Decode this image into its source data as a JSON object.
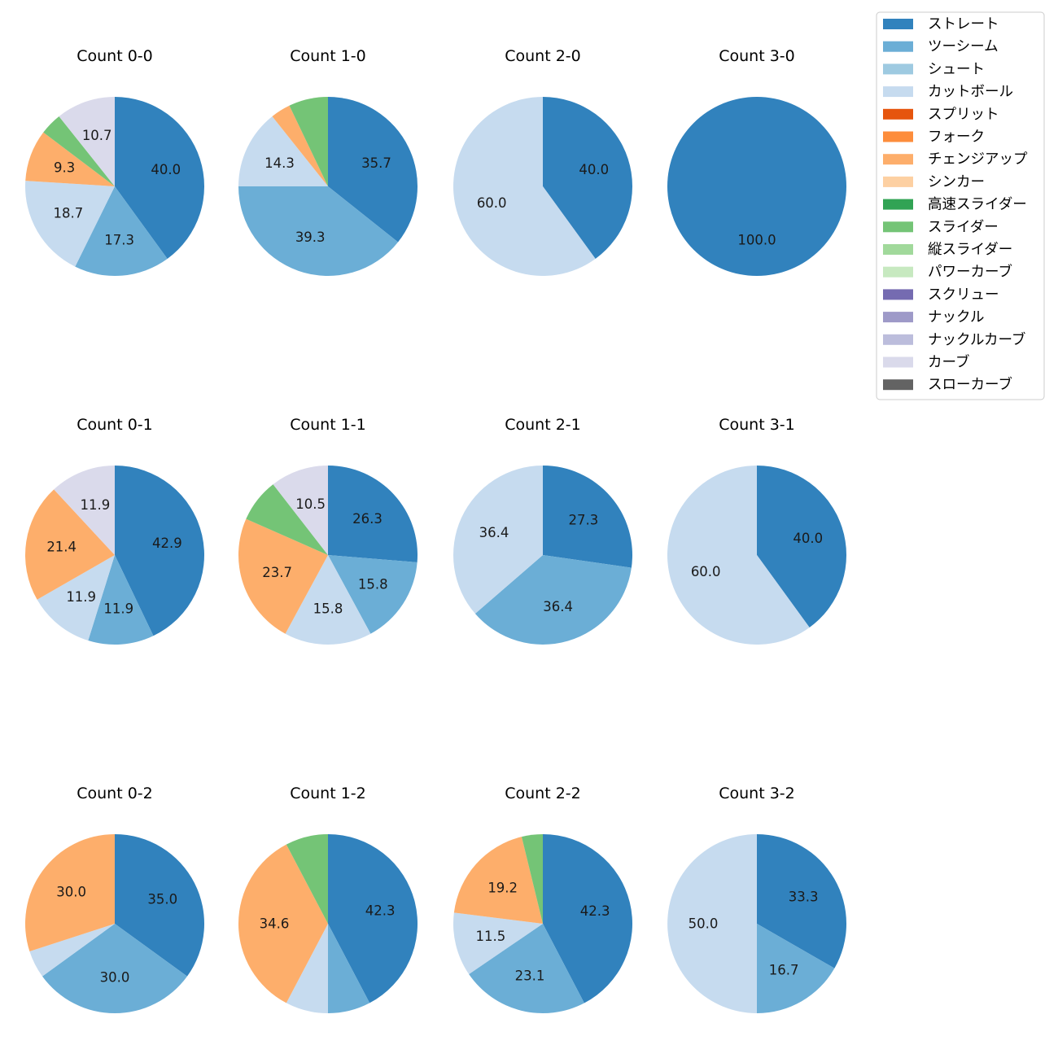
{
  "colors": {
    "ストレート": "#3182bd",
    "ツーシーム": "#6baed6",
    "シュート": "#9ecae1",
    "カットボール": "#c6dbef",
    "スプリット": "#e6550d",
    "フォーク": "#fd8d3c",
    "チェンジアップ": "#fdae6b",
    "シンカー": "#fdd0a2",
    "高速スライダー": "#31a354",
    "スライダー": "#74c476",
    "縦スライダー": "#a1d99b",
    "パワーカーブ": "#c7e9c0",
    "スクリュー": "#756bb1",
    "ナックル": "#9e9ac8",
    "ナックルカーブ": "#bcbddc",
    "カーブ": "#dadaeb",
    "スローカーブ": "#636363"
  },
  "legend": {
    "position": "top-right",
    "entries": [
      "ストレート",
      "ツーシーム",
      "シュート",
      "カットボール",
      "スプリット",
      "フォーク",
      "チェンジアップ",
      "シンカー",
      "高速スライダー",
      "スライダー",
      "縦スライダー",
      "パワーカーブ",
      "スクリュー",
      "ナックル",
      "ナックルカーブ",
      "カーブ",
      "スローカーブ"
    ]
  },
  "chart_data": [
    {
      "type": "pie",
      "title": "Count 0-0",
      "slices": [
        {
          "label": "ストレート",
          "value": 40.0
        },
        {
          "label": "ツーシーム",
          "value": 17.3
        },
        {
          "label": "カットボール",
          "value": 18.7
        },
        {
          "label": "チェンジアップ",
          "value": 9.3
        },
        {
          "label": "スライダー",
          "value": 4.0
        },
        {
          "label": "カーブ",
          "value": 10.7
        }
      ]
    },
    {
      "type": "pie",
      "title": "Count 1-0",
      "slices": [
        {
          "label": "ストレート",
          "value": 35.7
        },
        {
          "label": "ツーシーム",
          "value": 39.3
        },
        {
          "label": "カットボール",
          "value": 14.3
        },
        {
          "label": "チェンジアップ",
          "value": 3.6
        },
        {
          "label": "スライダー",
          "value": 7.1
        }
      ]
    },
    {
      "type": "pie",
      "title": "Count 2-0",
      "slices": [
        {
          "label": "ストレート",
          "value": 40.0
        },
        {
          "label": "カットボール",
          "value": 60.0
        }
      ]
    },
    {
      "type": "pie",
      "title": "Count 3-0",
      "slices": [
        {
          "label": "ストレート",
          "value": 100.0
        }
      ]
    },
    {
      "type": "pie",
      "title": "Count 0-1",
      "slices": [
        {
          "label": "ストレート",
          "value": 42.9
        },
        {
          "label": "ツーシーム",
          "value": 11.9
        },
        {
          "label": "カットボール",
          "value": 11.9
        },
        {
          "label": "チェンジアップ",
          "value": 21.4
        },
        {
          "label": "カーブ",
          "value": 11.9
        }
      ]
    },
    {
      "type": "pie",
      "title": "Count 1-1",
      "slices": [
        {
          "label": "ストレート",
          "value": 26.3
        },
        {
          "label": "ツーシーム",
          "value": 15.8
        },
        {
          "label": "カットボール",
          "value": 15.8
        },
        {
          "label": "チェンジアップ",
          "value": 23.7
        },
        {
          "label": "スライダー",
          "value": 7.9
        },
        {
          "label": "カーブ",
          "value": 10.5
        }
      ]
    },
    {
      "type": "pie",
      "title": "Count 2-1",
      "slices": [
        {
          "label": "ストレート",
          "value": 27.3
        },
        {
          "label": "ツーシーム",
          "value": 36.4
        },
        {
          "label": "カットボール",
          "value": 36.4
        }
      ]
    },
    {
      "type": "pie",
      "title": "Count 3-1",
      "slices": [
        {
          "label": "ストレート",
          "value": 40.0
        },
        {
          "label": "カットボール",
          "value": 60.0
        }
      ]
    },
    {
      "type": "pie",
      "title": "Count 0-2",
      "slices": [
        {
          "label": "ストレート",
          "value": 35.0
        },
        {
          "label": "ツーシーム",
          "value": 30.0
        },
        {
          "label": "カットボール",
          "value": 5.0
        },
        {
          "label": "チェンジアップ",
          "value": 30.0
        }
      ]
    },
    {
      "type": "pie",
      "title": "Count 1-2",
      "slices": [
        {
          "label": "ストレート",
          "value": 42.3
        },
        {
          "label": "ツーシーム",
          "value": 7.7
        },
        {
          "label": "カットボール",
          "value": 7.7
        },
        {
          "label": "チェンジアップ",
          "value": 34.6
        },
        {
          "label": "スライダー",
          "value": 7.7
        }
      ]
    },
    {
      "type": "pie",
      "title": "Count 2-2",
      "slices": [
        {
          "label": "ストレート",
          "value": 42.3
        },
        {
          "label": "ツーシーム",
          "value": 23.1
        },
        {
          "label": "カットボール",
          "value": 11.5
        },
        {
          "label": "チェンジアップ",
          "value": 19.2
        },
        {
          "label": "スライダー",
          "value": 3.8
        }
      ]
    },
    {
      "type": "pie",
      "title": "Count 3-2",
      "slices": [
        {
          "label": "ストレート",
          "value": 33.3
        },
        {
          "label": "ツーシーム",
          "value": 16.7
        },
        {
          "label": "カットボール",
          "value": 50.0
        }
      ]
    }
  ]
}
